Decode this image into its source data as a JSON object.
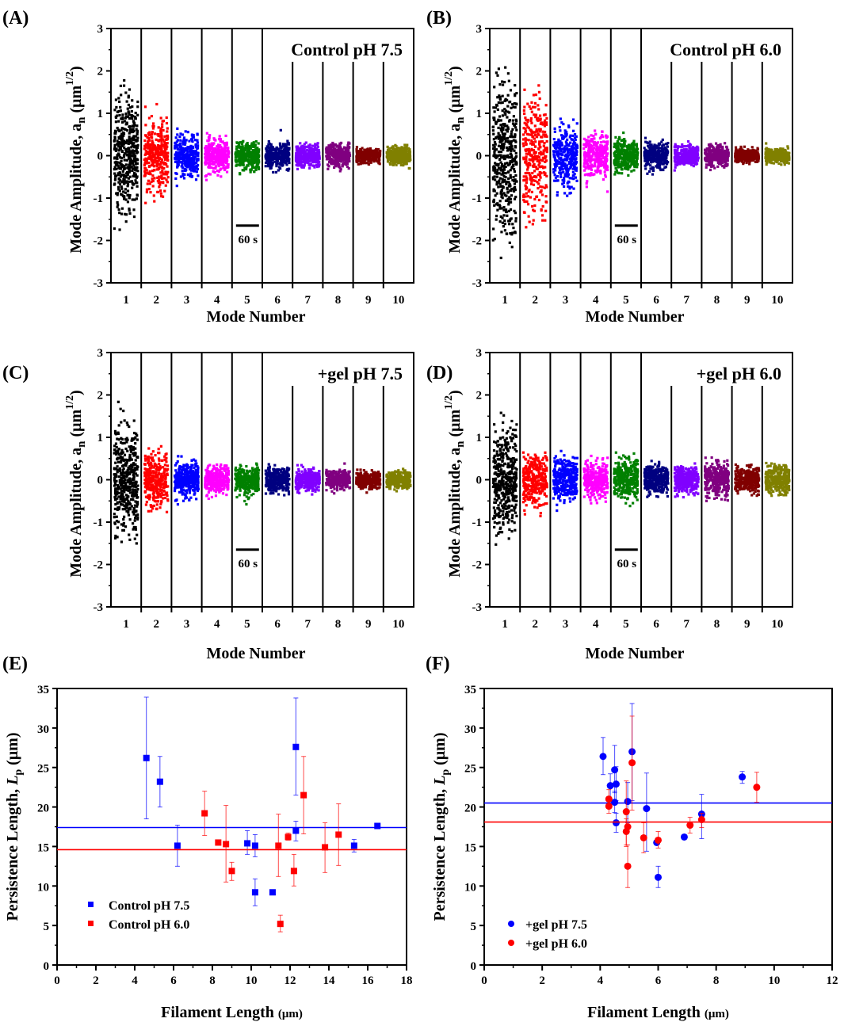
{
  "chart_data": [
    {
      "panel": "(A)",
      "type": "scatter",
      "annotation": "Control pH 7.5",
      "xlabel": "Mode Number",
      "ylabel": "Mode Amplitude, a_n (μm^1/2)",
      "ylim": [
        -3,
        3
      ],
      "yticks": [
        -3,
        -2,
        -1,
        0,
        1,
        2,
        3
      ],
      "categories": [
        1,
        2,
        3,
        4,
        5,
        6,
        7,
        8,
        9,
        10
      ],
      "scale_bar": "60 s",
      "approx_amplitude_range": [
        1.5,
        1.0,
        0.6,
        0.5,
        0.4,
        0.35,
        0.3,
        0.3,
        0.2,
        0.25
      ]
    },
    {
      "panel": "(B)",
      "type": "scatter",
      "annotation": "Control pH 6.0",
      "xlabel": "Mode Number",
      "ylabel": "Mode Amplitude, a_n (μm^1/2)",
      "ylim": [
        -3,
        3
      ],
      "yticks": [
        -3,
        -2,
        -1,
        0,
        1,
        2,
        3
      ],
      "categories": [
        1,
        2,
        3,
        4,
        5,
        6,
        7,
        8,
        9,
        10
      ],
      "scale_bar": "60 s",
      "approx_amplitude_range": [
        2.2,
        1.7,
        0.9,
        0.6,
        0.45,
        0.35,
        0.3,
        0.3,
        0.2,
        0.2
      ]
    },
    {
      "panel": "(C)",
      "type": "scatter",
      "annotation": "+gel pH 7.5",
      "xlabel": "Mode Number",
      "ylabel": "Mode Amplitude, a_n (μm^1/2)",
      "ylim": [
        -3,
        3
      ],
      "yticks": [
        -3,
        -2,
        -1,
        0,
        1,
        2,
        3
      ],
      "categories": [
        1,
        2,
        3,
        4,
        5,
        6,
        7,
        8,
        9,
        10
      ],
      "scale_bar": "60 s",
      "approx_amplitude_range": [
        1.5,
        0.75,
        0.5,
        0.4,
        0.4,
        0.35,
        0.3,
        0.25,
        0.25,
        0.25
      ]
    },
    {
      "panel": "(D)",
      "type": "scatter",
      "annotation": "+gel pH 6.0",
      "xlabel": "Mode Number",
      "ylabel": "Mode Amplitude, a_n (μm^1/2)",
      "ylim": [
        -3,
        3
      ],
      "yticks": [
        -3,
        -2,
        -1,
        0,
        1,
        2,
        3
      ],
      "categories": [
        1,
        2,
        3,
        4,
        5,
        6,
        7,
        8,
        9,
        10
      ],
      "scale_bar": "60 s",
      "approx_amplitude_range": [
        1.4,
        0.7,
        0.6,
        0.5,
        0.6,
        0.4,
        0.4,
        0.5,
        0.35,
        0.4
      ]
    },
    {
      "panel": "(E)",
      "type": "scatter",
      "xlabel": "Filament Length (μm)",
      "ylabel": "Persistence Length, L_p (μm)",
      "xlim": [
        0,
        18
      ],
      "ylim": [
        0,
        35
      ],
      "xticks": [
        0,
        2,
        4,
        6,
        8,
        10,
        12,
        14,
        16,
        18
      ],
      "yticks": [
        0,
        5,
        10,
        15,
        20,
        25,
        30,
        35
      ],
      "legend_position": "bottom-left",
      "series": [
        {
          "name": "Control pH 7.5",
          "color": "#0000ff",
          "mean_line": 17.4,
          "points": [
            [
              4.6,
              26.2,
              18.5,
              33.9
            ],
            [
              5.3,
              23.2,
              20.0,
              26.4
            ],
            [
              6.2,
              15.1,
              12.5,
              17.7
            ],
            [
              9.8,
              15.4,
              14.0,
              17.0
            ],
            [
              10.2,
              15.1,
              13.7,
              16.5
            ],
            [
              10.2,
              9.2,
              7.5,
              10.9
            ],
            [
              11.1,
              9.2,
              null,
              null
            ],
            [
              12.3,
              27.6,
              21.5,
              33.8
            ],
            [
              12.3,
              17.0,
              15.7,
              18.2
            ],
            [
              15.3,
              15.1,
              14.3,
              15.9
            ],
            [
              16.5,
              17.6,
              null,
              null
            ]
          ]
        },
        {
          "name": "Control pH 6.0",
          "color": "#ff0000",
          "mean_line": 14.6,
          "points": [
            [
              7.6,
              19.2,
              16.4,
              22.0
            ],
            [
              8.3,
              15.5,
              null,
              null
            ],
            [
              8.7,
              15.3,
              10.5,
              20.2
            ],
            [
              9.0,
              11.9,
              10.7,
              13.0
            ],
            [
              11.4,
              15.1,
              11.2,
              19.1
            ],
            [
              11.5,
              5.2,
              4.2,
              6.3
            ],
            [
              11.9,
              16.2,
              15.8,
              16.7
            ],
            [
              12.2,
              11.9,
              10.0,
              14.0
            ],
            [
              12.7,
              21.5,
              16.6,
              26.4
            ],
            [
              13.8,
              14.9,
              11.7,
              18.0
            ],
            [
              14.5,
              16.5,
              12.6,
              20.4
            ]
          ]
        }
      ]
    },
    {
      "panel": "(F)",
      "type": "scatter",
      "xlabel": "Filament Length (μm)",
      "ylabel": "Persistence Length, L_p (μm)",
      "xlim": [
        0,
        12
      ],
      "ylim": [
        0,
        35
      ],
      "xticks": [
        0,
        2,
        4,
        6,
        8,
        10,
        12
      ],
      "yticks": [
        0,
        5,
        10,
        15,
        20,
        25,
        30,
        35
      ],
      "legend_position": "bottom-left",
      "series": [
        {
          "name": "+gel pH 7.5",
          "color": "#0000ff",
          "mean_line": 20.5,
          "points": [
            [
              4.1,
              26.4,
              24.1,
              28.8
            ],
            [
              4.35,
              22.7,
              20.7,
              24.2
            ],
            [
              4.5,
              24.7,
              21.8,
              27.8
            ],
            [
              4.55,
              22.9,
              20.8,
              25.1
            ],
            [
              4.5,
              20.6,
              19.3,
              22.0
            ],
            [
              4.55,
              18.0,
              16.8,
              19.2
            ],
            [
              4.95,
              20.7,
              18.0,
              23.1
            ],
            [
              5.1,
              27.0,
              20.8,
              33.1
            ],
            [
              5.6,
              19.8,
              14.4,
              24.3
            ],
            [
              5.95,
              15.5,
              null,
              null
            ],
            [
              6.0,
              11.1,
              9.8,
              12.5
            ],
            [
              6.9,
              16.2,
              null,
              null
            ],
            [
              7.5,
              19.1,
              16.0,
              21.6
            ],
            [
              8.9,
              23.8,
              23.0,
              24.5
            ]
          ]
        },
        {
          "name": "+gel pH 6.0",
          "color": "#ff0000",
          "mean_line": 18.1,
          "points": [
            [
              4.3,
              21.0,
              19.8,
              22.2
            ],
            [
              4.3,
              20.1,
              19.2,
              21.3
            ],
            [
              4.9,
              19.4,
              15.2,
              23.3
            ],
            [
              4.95,
              17.5,
              null,
              null
            ],
            [
              4.9,
              16.9,
              15.0,
              18.5
            ],
            [
              4.95,
              12.5,
              9.8,
              15.2
            ],
            [
              5.1,
              25.6,
              19.6,
              31.5
            ],
            [
              5.5,
              16.1,
              14.2,
              18.0
            ],
            [
              6.0,
              15.8,
              14.8,
              16.9
            ],
            [
              7.1,
              17.7,
              16.7,
              18.7
            ],
            [
              7.5,
              18.4,
              17.4,
              19.2
            ],
            [
              9.4,
              22.5,
              20.6,
              24.4
            ]
          ]
        }
      ]
    }
  ],
  "mode_colors": [
    "#000000",
    "#ff0000",
    "#0000ff",
    "#ff00ff",
    "#008000",
    "#000080",
    "#8000ff",
    "#800080",
    "#800000",
    "#808000"
  ]
}
